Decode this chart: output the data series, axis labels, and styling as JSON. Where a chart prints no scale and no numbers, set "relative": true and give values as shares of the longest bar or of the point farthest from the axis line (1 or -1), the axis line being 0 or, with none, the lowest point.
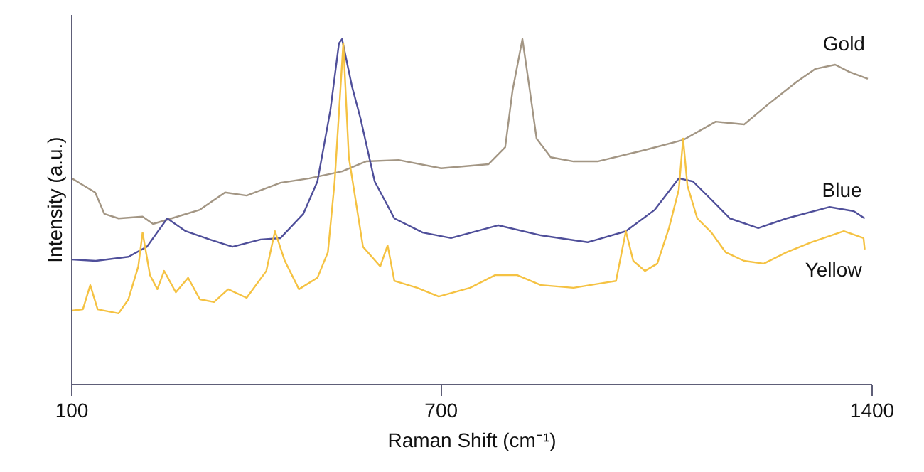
{
  "chart_data": {
    "type": "line",
    "relative": true,
    "xlabel": "Raman Shift (cm⁻¹)",
    "ylabel": "Intensity (a.u.)",
    "xlim": [
      100,
      1400
    ],
    "xticks": [
      100,
      700,
      1400
    ],
    "grid": false,
    "line_style": "solid",
    "series": [
      {
        "name": "Gold",
        "color": "#a39684",
        "x": [
          100,
          138,
          153,
          176,
          215,
          232,
          262,
          308,
          349,
          384,
          439,
          486,
          539,
          578,
          631,
          700,
          777,
          804,
          816,
          832,
          843,
          855,
          878,
          915,
          954,
          1031,
          1093,
          1146,
          1192,
          1231,
          1278,
          1308,
          1340,
          1363,
          1393
        ],
        "values": [
          0.597,
          0.556,
          0.494,
          0.481,
          0.486,
          0.465,
          0.481,
          0.506,
          0.556,
          0.547,
          0.584,
          0.597,
          0.617,
          0.646,
          0.65,
          0.626,
          0.638,
          0.687,
          0.852,
          1.0,
          0.864,
          0.712,
          0.658,
          0.646,
          0.646,
          0.679,
          0.708,
          0.761,
          0.753,
          0.811,
          0.877,
          0.914,
          0.926,
          0.905,
          0.885
        ]
      },
      {
        "name": "Blue",
        "color": "#4f4f9a",
        "x": [
          100,
          139,
          192,
          222,
          255,
          285,
          324,
          361,
          407,
          439,
          476,
          499,
          520,
          534,
          539,
          555,
          569,
          592,
          624,
          670,
          716,
          793,
          862,
          938,
          954,
          1000,
          1047,
          1086,
          1109,
          1139,
          1169,
          1215,
          1261,
          1331,
          1370,
          1388
        ],
        "values": [
          0.362,
          0.358,
          0.37,
          0.399,
          0.481,
          0.444,
          0.42,
          0.399,
          0.42,
          0.424,
          0.494,
          0.588,
          0.794,
          0.988,
          1.0,
          0.864,
          0.77,
          0.588,
          0.481,
          0.44,
          0.424,
          0.461,
          0.432,
          0.412,
          0.42,
          0.444,
          0.506,
          0.597,
          0.588,
          0.535,
          0.481,
          0.453,
          0.481,
          0.514,
          0.502,
          0.481
        ]
      },
      {
        "name": "Yellow",
        "color": "#f5c242",
        "x": [
          100,
          118,
          130,
          142,
          176,
          192,
          208,
          215,
          227,
          239,
          250,
          269,
          289,
          308,
          331,
          354,
          384,
          416,
          430,
          446,
          469,
          499,
          516,
          527,
          541,
          550,
          573,
          601,
          613,
          624,
          661,
          696,
          747,
          788,
          823,
          862,
          915,
          970,
          984,
          1000,
          1012,
          1031,
          1051,
          1070,
          1086,
          1093,
          1100,
          1116,
          1139,
          1162,
          1192,
          1224,
          1261,
          1301,
          1354,
          1386,
          1388
        ],
        "values": [
          0.214,
          0.218,
          0.288,
          0.218,
          0.206,
          0.247,
          0.342,
          0.44,
          0.317,
          0.276,
          0.329,
          0.267,
          0.309,
          0.247,
          0.239,
          0.276,
          0.251,
          0.329,
          0.444,
          0.358,
          0.276,
          0.309,
          0.383,
          0.588,
          0.988,
          0.658,
          0.399,
          0.342,
          0.403,
          0.3,
          0.28,
          0.255,
          0.28,
          0.317,
          0.317,
          0.288,
          0.28,
          0.296,
          0.3,
          0.444,
          0.358,
          0.329,
          0.35,
          0.453,
          0.564,
          0.712,
          0.576,
          0.481,
          0.44,
          0.383,
          0.358,
          0.35,
          0.383,
          0.412,
          0.444,
          0.424,
          0.391
        ]
      }
    ]
  }
}
